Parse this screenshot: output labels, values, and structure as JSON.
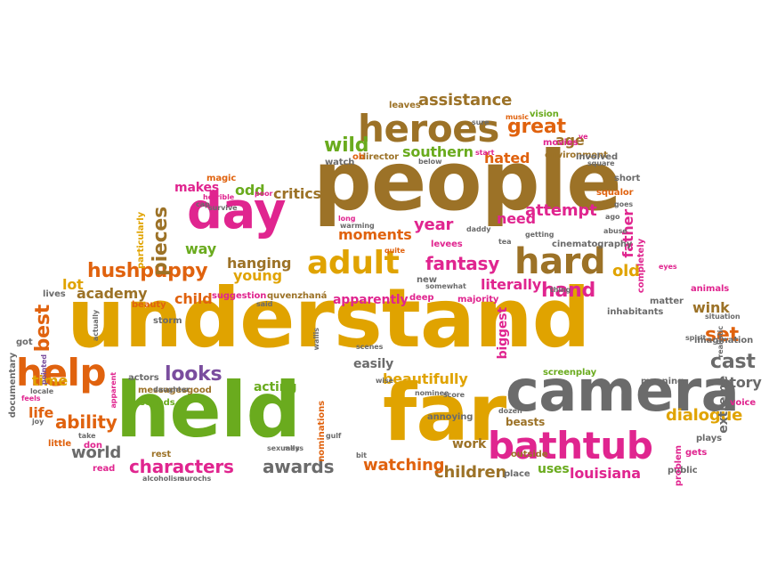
{
  "colors": {
    "gold": "#e0a300",
    "pink": "#e0258f",
    "green": "#6aab1e",
    "orange": "#e0620e",
    "brown": "#9c7227",
    "gray": "#6b6b6b",
    "purple": "#7a4d9e"
  },
  "words": [
    {
      "t": "understand",
      "c": "gold"
    },
    {
      "t": "people",
      "c": "brown"
    },
    {
      "t": "far",
      "c": "gold"
    },
    {
      "t": "held",
      "c": "green"
    },
    {
      "t": "camera",
      "c": "gray"
    },
    {
      "t": "bathtub",
      "c": "pink"
    },
    {
      "t": "heroes",
      "c": "brown"
    },
    {
      "t": "day",
      "c": "pink"
    },
    {
      "t": "adult",
      "c": "gold"
    },
    {
      "t": "hard",
      "c": "brown"
    },
    {
      "t": "help",
      "c": "orange"
    },
    {
      "t": "hushpuppy",
      "c": "orange"
    },
    {
      "t": "characters",
      "c": "pink"
    },
    {
      "t": "awards",
      "c": "gray"
    },
    {
      "t": "great",
      "c": "orange"
    },
    {
      "t": "assistance",
      "c": "brown"
    },
    {
      "t": "fantasy",
      "c": "pink"
    },
    {
      "t": "attempt",
      "c": "pink"
    },
    {
      "t": "year",
      "c": "pink"
    },
    {
      "t": "hand",
      "c": "pink"
    },
    {
      "t": "cast",
      "c": "gray"
    },
    {
      "t": "ability",
      "c": "orange"
    },
    {
      "t": "looks",
      "c": "purple"
    },
    {
      "t": "wild",
      "c": "green"
    },
    {
      "t": "southern",
      "c": "green"
    },
    {
      "t": "best",
      "c": "orange"
    },
    {
      "t": "pieces",
      "c": "brown"
    },
    {
      "t": "dialogue",
      "c": "gold"
    },
    {
      "t": "extreme",
      "c": "gray"
    },
    {
      "t": "children",
      "c": "brown"
    },
    {
      "t": "louisiana",
      "c": "pink"
    },
    {
      "t": "watching",
      "c": "orange"
    },
    {
      "t": "world",
      "c": "gray"
    },
    {
      "t": "beautifully",
      "c": "gold"
    },
    {
      "t": "moments",
      "c": "orange"
    },
    {
      "t": "hanging",
      "c": "brown"
    },
    {
      "t": "young",
      "c": "gold"
    },
    {
      "t": "time",
      "c": "gold"
    },
    {
      "t": "way",
      "c": "green"
    },
    {
      "t": "child",
      "c": "orange"
    },
    {
      "t": "academy",
      "c": "brown"
    },
    {
      "t": "lot",
      "c": "gold"
    },
    {
      "t": "set",
      "c": "orange"
    },
    {
      "t": "wink",
      "c": "brown"
    },
    {
      "t": "story",
      "c": "gray"
    },
    {
      "t": "old",
      "c": "gold"
    },
    {
      "t": "father",
      "c": "pink"
    },
    {
      "t": "biggest",
      "c": "pink"
    },
    {
      "t": "literally",
      "c": "pink"
    },
    {
      "t": "age",
      "c": "brown"
    },
    {
      "t": "hated",
      "c": "orange"
    },
    {
      "t": "critics",
      "c": "brown"
    },
    {
      "t": "odd",
      "c": "green"
    },
    {
      "t": "makes",
      "c": "pink"
    },
    {
      "t": "need",
      "c": "pink"
    },
    {
      "t": "life",
      "c": "orange"
    },
    {
      "t": "acting",
      "c": "green"
    },
    {
      "t": "apparently",
      "c": "pink"
    },
    {
      "t": "work",
      "c": "brown"
    },
    {
      "t": "uses",
      "c": "green"
    },
    {
      "t": "beasts",
      "c": "brown"
    },
    {
      "t": "easily",
      "c": "gray"
    },
    {
      "t": "magic",
      "c": "orange"
    },
    {
      "t": "watch",
      "c": "gray"
    },
    {
      "t": "movies",
      "c": "pink"
    },
    {
      "t": "vision",
      "c": "green"
    },
    {
      "t": "short",
      "c": "gray"
    },
    {
      "t": "squalor",
      "c": "orange"
    },
    {
      "t": "environment",
      "c": "brown"
    },
    {
      "t": "involved",
      "c": "gray"
    },
    {
      "t": "leaves",
      "c": "brown"
    },
    {
      "t": "particularly",
      "c": "gold"
    },
    {
      "t": "screenplay",
      "c": "green"
    },
    {
      "t": "imagination",
      "c": "gray"
    },
    {
      "t": "quvenzhaná",
      "c": "brown"
    },
    {
      "t": "suggestion",
      "c": "pink"
    },
    {
      "t": "messages",
      "c": "brown"
    },
    {
      "t": "nominations",
      "c": "orange"
    },
    {
      "t": "inhabitants",
      "c": "gray"
    },
    {
      "t": "place",
      "c": "gray"
    },
    {
      "t": "sounds",
      "c": "green"
    },
    {
      "t": "read",
      "c": "pink"
    },
    {
      "t": "rest",
      "c": "brown"
    },
    {
      "t": "little",
      "c": "orange"
    },
    {
      "t": "matter",
      "c": "gray"
    },
    {
      "t": "animals",
      "c": "pink"
    },
    {
      "t": "annoying",
      "c": "gray"
    },
    {
      "t": "outside",
      "c": "brown"
    },
    {
      "t": "cinematography",
      "c": "gray"
    },
    {
      "t": "voice",
      "c": "pink"
    },
    {
      "t": "beauty",
      "c": "orange"
    },
    {
      "t": "storm",
      "c": "gray"
    },
    {
      "t": "actors",
      "c": "gray"
    },
    {
      "t": "director",
      "c": "brown"
    },
    {
      "t": "oh",
      "c": "orange"
    },
    {
      "t": "levees",
      "c": "pink"
    },
    {
      "t": "completely",
      "c": "pink"
    },
    {
      "t": "deep",
      "c": "pink"
    },
    {
      "t": "new",
      "c": "gray"
    },
    {
      "t": "majority",
      "c": "pink"
    },
    {
      "t": "meaning",
      "c": "gray"
    },
    {
      "t": "documentary",
      "c": "gray"
    },
    {
      "t": "got",
      "c": "gray"
    },
    {
      "t": "lives",
      "c": "gray"
    },
    {
      "t": "don",
      "c": "pink"
    },
    {
      "t": "public",
      "c": "gray"
    },
    {
      "t": "gets",
      "c": "pink"
    },
    {
      "t": "plays",
      "c": "gray"
    },
    {
      "t": "problem",
      "c": "pink"
    },
    {
      "t": "music",
      "c": "orange"
    },
    {
      "t": "sure",
      "c": "gray"
    },
    {
      "t": "quite",
      "c": "orange"
    },
    {
      "t": "long",
      "c": "pink"
    },
    {
      "t": "warming",
      "c": "gray"
    },
    {
      "t": "horrible",
      "c": "pink"
    },
    {
      "t": "ago",
      "c": "gray"
    },
    {
      "t": "abuse",
      "c": "gray"
    },
    {
      "t": "goes",
      "c": "gray"
    },
    {
      "t": "eyes",
      "c": "pink"
    },
    {
      "t": "daddy",
      "c": "gray"
    },
    {
      "t": "ve",
      "c": "pink"
    },
    {
      "t": "start",
      "c": "pink"
    },
    {
      "t": "poor",
      "c": "pink"
    },
    {
      "t": "good",
      "c": "brown"
    },
    {
      "t": "pointed",
      "c": "purple"
    },
    {
      "t": "scenes",
      "c": "gray"
    },
    {
      "t": "nominee",
      "c": "gray"
    },
    {
      "t": "score",
      "c": "gray"
    },
    {
      "t": "said",
      "c": "gray"
    },
    {
      "t": "apparent",
      "c": "pink"
    },
    {
      "t": "feels",
      "c": "pink"
    },
    {
      "t": "bit",
      "c": "gray"
    },
    {
      "t": "dozen",
      "c": "gray"
    },
    {
      "t": "situation",
      "c": "gray"
    },
    {
      "t": "spirit",
      "c": "gray"
    },
    {
      "t": "below",
      "c": "gray"
    },
    {
      "t": "getting",
      "c": "gray"
    },
    {
      "t": "somewhat",
      "c": "gray"
    },
    {
      "t": "thing",
      "c": "gray"
    },
    {
      "t": "square",
      "c": "gray"
    },
    {
      "t": "joy",
      "c": "gray"
    },
    {
      "t": "take",
      "c": "gray"
    },
    {
      "t": "wise",
      "c": "gray"
    },
    {
      "t": "survive",
      "c": "gray"
    },
    {
      "t": "cap",
      "c": "gray"
    },
    {
      "t": "daughter",
      "c": "gray"
    },
    {
      "t": "locale",
      "c": "gray"
    },
    {
      "t": "aurochs",
      "c": "gray"
    },
    {
      "t": "alcoholism",
      "c": "gray"
    },
    {
      "t": "actually",
      "c": "gray"
    },
    {
      "t": "realistic",
      "c": "gray"
    },
    {
      "t": "wallis",
      "c": "gray"
    },
    {
      "t": "gulf",
      "c": "gray"
    },
    {
      "t": "sexually",
      "c": "gray"
    },
    {
      "t": "mess",
      "c": "gray"
    },
    {
      "t": "tea",
      "c": "gray"
    }
  ]
}
